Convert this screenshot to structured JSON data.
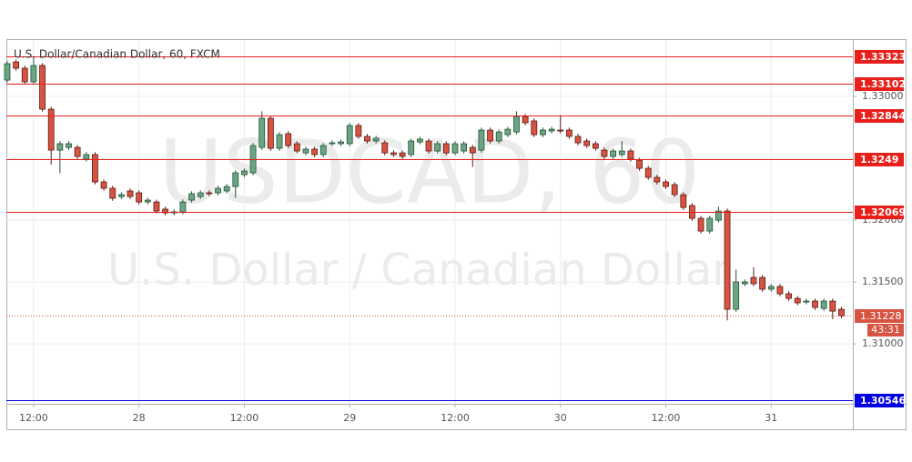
{
  "chart_data": {
    "type": "candlestick",
    "title": "U.S. Dollar/Canadian Dollar, 60, FXCM",
    "watermark": [
      "USDCAD, 60",
      "U.S. Dollar / Canadian Dollar"
    ],
    "up_color": "#6ba583",
    "down_color": "#d75442",
    "grid": true,
    "xlim": [
      -0.1,
      96.3
    ],
    "xticks": [
      {
        "value": 3,
        "label": "12:00"
      },
      {
        "value": 15,
        "label": "28"
      },
      {
        "value": 27,
        "label": "12:00"
      },
      {
        "value": 39,
        "label": "29"
      },
      {
        "value": 51,
        "label": "12:00"
      },
      {
        "value": 63,
        "label": "30"
      },
      {
        "value": 75,
        "label": "12:00"
      },
      {
        "value": 87,
        "label": "31"
      }
    ],
    "ylim": [
      1.30516,
      1.33456
    ],
    "yticks": [
      {
        "value": 1.33,
        "label": "1.33000"
      },
      {
        "value": 1.325,
        "label": "1.32500"
      },
      {
        "value": 1.32,
        "label": "1.32000"
      },
      {
        "value": 1.315,
        "label": "1.31500"
      },
      {
        "value": 1.31,
        "label": "1.31000"
      }
    ],
    "hlines": [
      {
        "value": 1.33323,
        "color": "#e8201b"
      },
      {
        "value": 1.33102,
        "color": "#e8201b"
      },
      {
        "value": 1.32844,
        "color": "#e8201b"
      },
      {
        "value": 1.3249,
        "color": "#e8201b"
      },
      {
        "value": 1.32069,
        "color": "#e8201b"
      },
      {
        "value": 1.30546,
        "color": "#0000e0"
      }
    ],
    "current_price": {
      "value": 1.31228,
      "countdown": "43:31"
    },
    "open": [
      1.33132,
      1.33279,
      1.33228,
      1.33118,
      1.3325,
      1.32897,
      1.32566,
      1.32588,
      1.32588,
      1.32493,
      1.3253,
      1.32309,
      1.32258,
      1.32191,
      1.32236,
      1.32221,
      1.32147,
      1.32147,
      1.32089,
      1.32059,
      1.32067,
      1.32162,
      1.32191,
      1.32221,
      1.32221,
      1.32236,
      1.32272,
      1.32368,
      1.32383,
      1.32588,
      1.32824,
      1.32581,
      1.32699,
      1.32618,
      1.32544,
      1.32574,
      1.3253,
      1.32618,
      1.32618,
      1.32618,
      1.32765,
      1.32677,
      1.3264,
      1.32625,
      1.32544,
      1.32544,
      1.3253,
      1.32632,
      1.3264,
      1.32559,
      1.32618,
      1.32544,
      1.32559,
      1.32588,
      1.32566,
      1.32728,
      1.3264,
      1.32691,
      1.32713,
      1.32838,
      1.32802,
      1.32691,
      1.32721,
      1.32728,
      1.32728,
      1.32677,
      1.3264,
      1.32618,
      1.32566,
      1.32515,
      1.3253,
      1.32559,
      1.32485,
      1.32419,
      1.32346,
      1.32309,
      1.32287,
      1.32206,
      1.32118,
      1.32015,
      1.31912,
      1.32,
      1.32074,
      1.3128,
      1.31486,
      1.31537,
      1.31537,
      1.31442,
      1.31464,
      1.31405,
      1.31368,
      1.31339,
      1.31346,
      1.31287,
      1.31346,
      1.3128
    ],
    "high": [
      1.33285,
      1.33299,
      1.33248,
      1.3332,
      1.3327,
      1.32917,
      1.32638,
      1.32638,
      1.32608,
      1.3255,
      1.3255,
      1.32329,
      1.32278,
      1.32226,
      1.32256,
      1.32241,
      1.32182,
      1.32167,
      1.32109,
      1.32087,
      1.32167,
      1.32234,
      1.32241,
      1.32241,
      1.32278,
      1.32292,
      1.32403,
      1.32417,
      1.32623,
      1.3288,
      1.32844,
      1.32711,
      1.32719,
      1.32638,
      1.32594,
      1.32594,
      1.32623,
      1.32645,
      1.32652,
      1.32785,
      1.32785,
      1.32697,
      1.32682,
      1.32645,
      1.32564,
      1.32564,
      1.3266,
      1.32675,
      1.3266,
      1.32638,
      1.32638,
      1.32638,
      1.32638,
      1.32608,
      1.32748,
      1.32748,
      1.32733,
      1.32755,
      1.3288,
      1.32858,
      1.32822,
      1.32748,
      1.32755,
      1.3285,
      1.32748,
      1.32697,
      1.3266,
      1.32638,
      1.32586,
      1.32579,
      1.3264,
      1.32579,
      1.32505,
      1.32439,
      1.32366,
      1.32329,
      1.32307,
      1.32226,
      1.32138,
      1.32035,
      1.32035,
      1.3211,
      1.32094,
      1.316,
      1.31521,
      1.3162,
      1.31557,
      1.31484,
      1.31484,
      1.31425,
      1.31388,
      1.31366,
      1.31366,
      1.31366,
      1.31366,
      1.313
    ],
    "low": [
      1.33112,
      1.33208,
      1.33098,
      1.33098,
      1.32877,
      1.3245,
      1.3238,
      1.32568,
      1.32495,
      1.32473,
      1.32289,
      1.32238,
      1.32157,
      1.32171,
      1.32171,
      1.32127,
      1.32127,
      1.32054,
      1.32039,
      1.32039,
      1.32047,
      1.32142,
      1.32171,
      1.32194,
      1.32201,
      1.32216,
      1.3218,
      1.32348,
      1.32363,
      1.32568,
      1.32561,
      1.32561,
      1.32583,
      1.32539,
      1.32524,
      1.3251,
      1.3251,
      1.32598,
      1.32598,
      1.32598,
      1.32657,
      1.3262,
      1.3262,
      1.32524,
      1.3251,
      1.32495,
      1.3251,
      1.32612,
      1.32539,
      1.32539,
      1.32524,
      1.32524,
      1.32539,
      1.3243,
      1.32546,
      1.3262,
      1.3262,
      1.32671,
      1.32693,
      1.32767,
      1.32671,
      1.32671,
      1.32701,
      1.32701,
      1.32657,
      1.32605,
      1.32583,
      1.32561,
      1.32495,
      1.32495,
      1.3251,
      1.32473,
      1.32399,
      1.32326,
      1.32289,
      1.32252,
      1.32186,
      1.32083,
      1.31995,
      1.31892,
      1.31892,
      1.3198,
      1.3119,
      1.3126,
      1.31466,
      1.31466,
      1.31422,
      1.31422,
      1.31385,
      1.31348,
      1.31312,
      1.31319,
      1.31275,
      1.31267,
      1.312,
      1.31208
    ],
    "close": [
      1.33265,
      1.33228,
      1.33118,
      1.3325,
      1.32897,
      1.32566,
      1.32618,
      1.32618,
      1.32515,
      1.3253,
      1.32309,
      1.32258,
      1.32177,
      1.32206,
      1.32191,
      1.32147,
      1.32162,
      1.32074,
      1.32059,
      1.32067,
      1.32147,
      1.32214,
      1.32221,
      1.32214,
      1.32258,
      1.32272,
      1.32383,
      1.32397,
      1.32603,
      1.32824,
      1.32581,
      1.32691,
      1.32603,
      1.32559,
      1.32574,
      1.3253,
      1.32603,
      1.32625,
      1.32632,
      1.32765,
      1.32677,
      1.3264,
      1.32662,
      1.32544,
      1.3253,
      1.32515,
      1.3264,
      1.32655,
      1.32559,
      1.32618,
      1.32544,
      1.32618,
      1.32618,
      1.32544,
      1.32728,
      1.3264,
      1.32713,
      1.32735,
      1.32838,
      1.32787,
      1.32691,
      1.32728,
      1.32735,
      1.32721,
      1.32677,
      1.32625,
      1.32603,
      1.32581,
      1.32515,
      1.32559,
      1.32559,
      1.32493,
      1.32419,
      1.32346,
      1.32309,
      1.32272,
      1.32206,
      1.32103,
      1.32015,
      1.31912,
      1.32015,
      1.32074,
      1.3128,
      1.31501,
      1.31501,
      1.31486,
      1.31442,
      1.31464,
      1.31405,
      1.31368,
      1.31332,
      1.31346,
      1.31295,
      1.31346,
      1.31265,
      1.31228
    ]
  }
}
